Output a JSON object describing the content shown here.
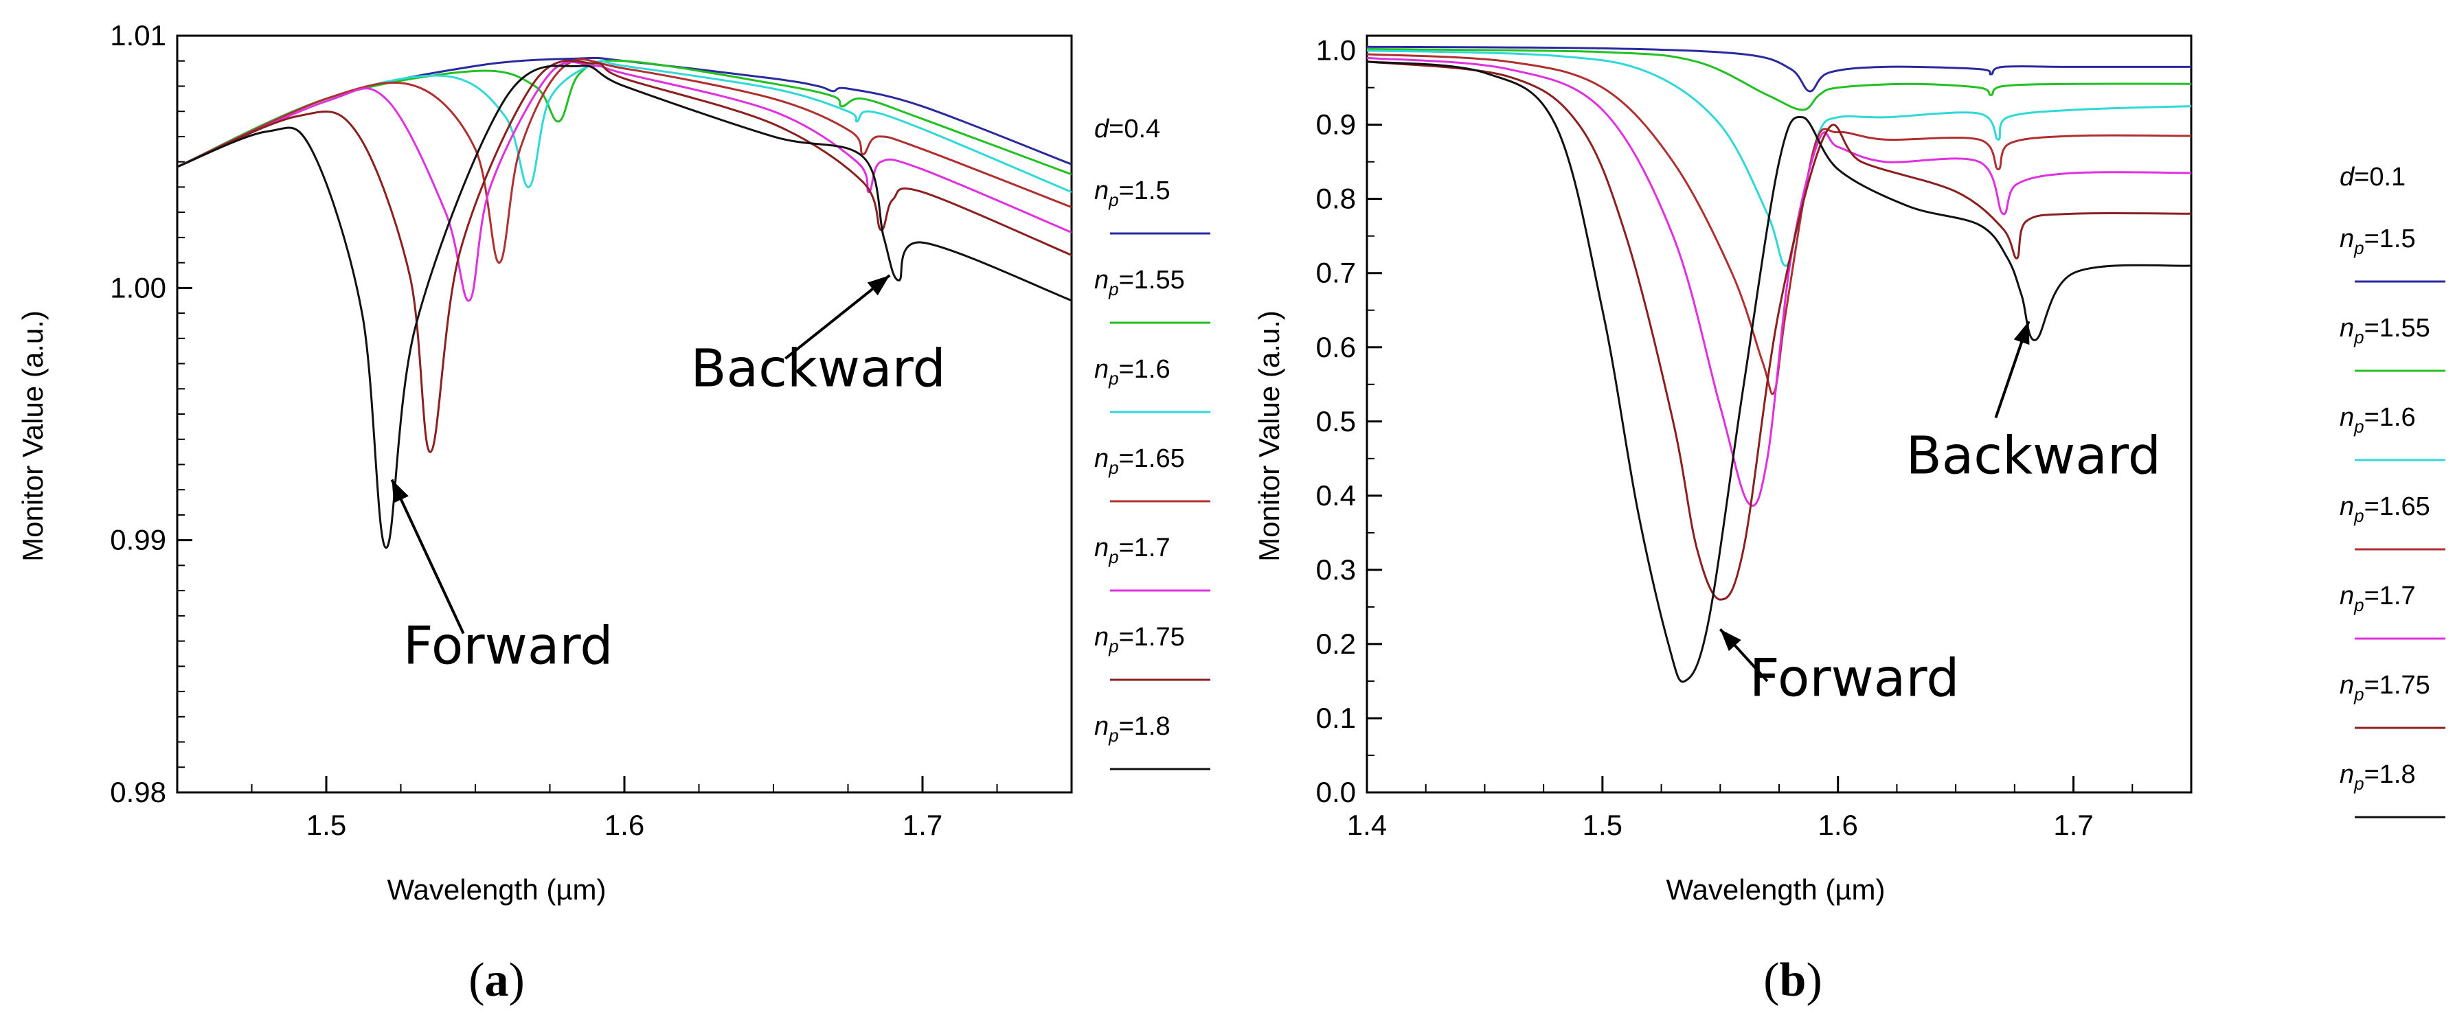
{
  "chart_data": [
    {
      "type": "line",
      "panel": "a",
      "caption_open": "(",
      "caption_letter": "a",
      "caption_close": ")",
      "xlabel": "Wavelength (µm)",
      "ylabel": "Monitor Value (a.u.)",
      "xlim": [
        1.45,
        1.75
      ],
      "ylim": [
        0.98,
        1.01
      ],
      "xticks": [
        1.5,
        1.6,
        1.7
      ],
      "xtick_labels": [
        "1.5",
        "1.6",
        "1.7"
      ],
      "yticks": [
        0.98,
        0.99,
        1.0,
        1.01
      ],
      "ytick_labels": [
        "0.98",
        "0.99",
        "1.00",
        "1.01"
      ],
      "legend_title": "d=0.4",
      "legend_title_var": "d",
      "legend_title_value": "=0.4",
      "grid": false,
      "legend_position": "right",
      "series": [
        {
          "name": "np=1.5",
          "label_var": "n",
          "label_sub": "p",
          "label_value": "=1.5",
          "color": "#2a2aa0",
          "x": [
            1.45,
            1.5,
            1.55,
            1.585,
            1.6,
            1.65,
            1.665,
            1.67,
            1.675,
            1.7,
            1.75
          ],
          "y": [
            1.0048,
            1.0075,
            1.0088,
            1.0091,
            1.009,
            1.0083,
            1.008,
            1.0078,
            1.0079,
            1.0072,
            1.0049
          ]
        },
        {
          "name": "np=1.55",
          "label_var": "n",
          "label_sub": "p",
          "label_value": "=1.55",
          "color": "#22c022",
          "x": [
            1.45,
            1.5,
            1.55,
            1.57,
            1.578,
            1.585,
            1.6,
            1.65,
            1.67,
            1.673,
            1.68,
            1.7,
            1.75
          ],
          "y": [
            1.0048,
            1.0075,
            1.0086,
            1.008,
            1.0066,
            1.0085,
            1.009,
            1.0081,
            1.0076,
            1.0072,
            1.0075,
            1.0067,
            1.0045
          ]
        },
        {
          "name": "np=1.6",
          "label_var": "n",
          "label_sub": "p",
          "label_value": "=1.6",
          "color": "#30d8d8",
          "x": [
            1.45,
            1.5,
            1.54,
            1.56,
            1.568,
            1.575,
            1.59,
            1.6,
            1.65,
            1.675,
            1.678,
            1.682,
            1.7,
            1.75
          ],
          "y": [
            1.0048,
            1.0075,
            1.0084,
            1.0068,
            1.004,
            1.0075,
            1.0089,
            1.0088,
            1.0079,
            1.007,
            1.0066,
            1.007,
            1.0063,
            1.0038
          ]
        },
        {
          "name": "np=1.65",
          "label_var": "n",
          "label_sub": "p",
          "label_value": "=1.65",
          "color": "#b03030",
          "x": [
            1.45,
            1.5,
            1.53,
            1.55,
            1.558,
            1.565,
            1.58,
            1.6,
            1.65,
            1.676,
            1.68,
            1.685,
            1.7,
            1.75
          ],
          "y": [
            1.0048,
            1.0075,
            1.008,
            1.0055,
            1.001,
            1.0055,
            1.0088,
            1.0087,
            1.0075,
            1.0062,
            1.0053,
            1.006,
            1.0055,
            1.0032
          ]
        },
        {
          "name": "np=1.7",
          "label_var": "n",
          "label_sub": "p",
          "label_value": "=1.7",
          "color": "#e030e0",
          "x": [
            1.45,
            1.5,
            1.52,
            1.54,
            1.548,
            1.555,
            1.575,
            1.59,
            1.6,
            1.65,
            1.678,
            1.682,
            1.686,
            1.7,
            1.75
          ],
          "y": [
            1.0048,
            1.0074,
            1.0075,
            1.003,
            0.9995,
            1.004,
            1.0085,
            1.0088,
            1.0085,
            1.007,
            1.005,
            1.0038,
            1.005,
            1.0047,
            1.0022
          ]
        },
        {
          "name": "np=1.75",
          "label_var": "n",
          "label_sub": "p",
          "label_value": "=1.75",
          "color": "#8b2020",
          "x": [
            1.45,
            1.49,
            1.51,
            1.528,
            1.535,
            1.545,
            1.57,
            1.59,
            1.6,
            1.65,
            1.68,
            1.686,
            1.69,
            1.7,
            1.75
          ],
          "y": [
            1.0048,
            1.0068,
            1.0062,
            1.0005,
            0.9935,
            1.0015,
            1.0082,
            1.0089,
            1.0083,
            1.0065,
            1.0042,
            1.0023,
            1.0035,
            1.0038,
            1.0013
          ]
        },
        {
          "name": "np=1.8",
          "label_var": "n",
          "label_sub": "p",
          "label_value": "=1.8",
          "color": "#111111",
          "x": [
            1.45,
            1.48,
            1.495,
            1.512,
            1.52,
            1.53,
            1.56,
            1.585,
            1.6,
            1.65,
            1.68,
            1.687,
            1.692,
            1.7,
            1.75
          ],
          "y": [
            1.0048,
            1.0062,
            1.0055,
            0.999,
            0.9897,
            0.9985,
            1.0075,
            1.0088,
            1.008,
            1.006,
            1.0052,
            1.002,
            1.0003,
            1.0018,
            0.9995
          ]
        }
      ],
      "annotations": [
        {
          "text": "Backward",
          "arrow_from": [
            1.654,
            0.9972
          ],
          "arrow_to": [
            1.689,
            1.0005
          ],
          "text_at": [
            1.665,
            0.9961
          ]
        },
        {
          "text": "Forward",
          "arrow_from": [
            1.546,
            0.9863
          ],
          "arrow_to": [
            1.522,
            0.9924
          ],
          "text_at": [
            1.561,
            0.9851
          ]
        }
      ]
    },
    {
      "type": "line",
      "panel": "b",
      "caption_open": "(",
      "caption_letter": "b",
      "caption_close": ")",
      "xlabel": "Wavelength (µm)",
      "ylabel": "Monitor Value (a.u.)",
      "xlim": [
        1.4,
        1.75
      ],
      "ylim": [
        0.0,
        1.02
      ],
      "xticks": [
        1.4,
        1.5,
        1.6,
        1.7
      ],
      "xtick_labels": [
        "1.4",
        "1.5",
        "1.6",
        "1.7"
      ],
      "yticks": [
        0.0,
        0.1,
        0.2,
        0.3,
        0.4,
        0.5,
        0.6,
        0.7,
        0.8,
        0.9,
        1.0
      ],
      "ytick_labels": [
        "0.0",
        "0.1",
        "0.2",
        "0.3",
        "0.4",
        "0.5",
        "0.6",
        "0.7",
        "0.8",
        "0.9",
        "1.0"
      ],
      "legend_title": "d=0.1",
      "legend_title_var": "d",
      "legend_title_value": "=0.1",
      "grid": false,
      "legend_position": "right",
      "series": [
        {
          "name": "np=1.5",
          "label_var": "n",
          "label_sub": "p",
          "label_value": "=1.5",
          "color": "#2a2aa0",
          "x": [
            1.4,
            1.5,
            1.56,
            1.58,
            1.588,
            1.596,
            1.62,
            1.66,
            1.665,
            1.67,
            1.7,
            1.75
          ],
          "y": [
            1.005,
            1.003,
            0.995,
            0.975,
            0.945,
            0.97,
            0.978,
            0.975,
            0.968,
            0.978,
            0.978,
            0.978
          ]
        },
        {
          "name": "np=1.55",
          "label_var": "n",
          "label_sub": "p",
          "label_value": "=1.55",
          "color": "#22c022",
          "x": [
            1.4,
            1.5,
            1.54,
            1.57,
            1.585,
            1.592,
            1.6,
            1.63,
            1.66,
            1.665,
            1.67,
            1.7,
            1.75
          ],
          "y": [
            1.002,
            0.998,
            0.985,
            0.94,
            0.92,
            0.94,
            0.95,
            0.955,
            0.95,
            0.94,
            0.952,
            0.955,
            0.955
          ]
        },
        {
          "name": "np=1.6",
          "label_var": "n",
          "label_sub": "p",
          "label_value": "=1.6",
          "color": "#30d8d8",
          "x": [
            1.4,
            1.48,
            1.52,
            1.55,
            1.57,
            1.578,
            1.585,
            1.592,
            1.6,
            1.62,
            1.66,
            1.668,
            1.672,
            1.7,
            1.75
          ],
          "y": [
            1.0,
            0.993,
            0.97,
            0.9,
            0.78,
            0.71,
            0.8,
            0.89,
            0.91,
            0.91,
            0.915,
            0.88,
            0.91,
            0.92,
            0.925
          ]
        },
        {
          "name": "np=1.65",
          "label_var": "n",
          "label_sub": "p",
          "label_value": "=1.65",
          "color": "#b03030",
          "x": [
            1.4,
            1.46,
            1.5,
            1.53,
            1.555,
            1.568,
            1.573,
            1.578,
            1.59,
            1.6,
            1.62,
            1.66,
            1.668,
            1.673,
            1.7,
            1.75
          ],
          "y": [
            0.995,
            0.985,
            0.95,
            0.85,
            0.7,
            0.58,
            0.54,
            0.65,
            0.87,
            0.89,
            0.88,
            0.88,
            0.84,
            0.875,
            0.885,
            0.885
          ]
        },
        {
          "name": "np=1.7",
          "label_var": "n",
          "label_sub": "p",
          "label_value": "=1.7",
          "color": "#e030e0",
          "x": [
            1.4,
            1.46,
            1.5,
            1.53,
            1.55,
            1.562,
            1.57,
            1.58,
            1.592,
            1.6,
            1.62,
            1.66,
            1.67,
            1.676,
            1.7,
            1.75
          ],
          "y": [
            0.99,
            0.975,
            0.92,
            0.75,
            0.52,
            0.39,
            0.45,
            0.72,
            0.88,
            0.87,
            0.85,
            0.85,
            0.78,
            0.82,
            0.835,
            0.835
          ]
        },
        {
          "name": "np=1.75",
          "label_var": "n",
          "label_sub": "p",
          "label_value": "=1.75",
          "color": "#8b2020",
          "x": [
            1.4,
            1.46,
            1.49,
            1.51,
            1.53,
            1.54,
            1.55,
            1.56,
            1.575,
            1.595,
            1.61,
            1.65,
            1.67,
            1.676,
            1.68,
            1.7,
            1.75
          ],
          "y": [
            0.985,
            0.965,
            0.9,
            0.75,
            0.5,
            0.33,
            0.26,
            0.33,
            0.65,
            0.89,
            0.85,
            0.81,
            0.76,
            0.72,
            0.77,
            0.78,
            0.78
          ]
        },
        {
          "name": "np=1.8",
          "label_var": "n",
          "label_sub": "p",
          "label_value": "=1.8",
          "color": "#111111",
          "x": [
            1.4,
            1.45,
            1.48,
            1.5,
            1.515,
            1.528,
            1.535,
            1.545,
            1.56,
            1.575,
            1.585,
            1.6,
            1.63,
            1.66,
            1.672,
            1.678,
            1.684,
            1.7,
            1.75
          ],
          "y": [
            0.985,
            0.97,
            0.9,
            0.65,
            0.38,
            0.2,
            0.15,
            0.23,
            0.55,
            0.85,
            0.91,
            0.84,
            0.79,
            0.765,
            0.72,
            0.67,
            0.61,
            0.7,
            0.71
          ]
        }
      ],
      "annotations": [
        {
          "text": "Backward",
          "arrow_from": [
            1.667,
            0.505
          ],
          "arrow_to": [
            1.681,
            0.635
          ],
          "text_at": [
            1.683,
            0.43
          ]
        },
        {
          "text": "Forward",
          "arrow_from": [
            1.57,
            0.15
          ],
          "arrow_to": [
            1.55,
            0.22
          ],
          "text_at": [
            1.607,
            0.13
          ]
        }
      ]
    }
  ]
}
